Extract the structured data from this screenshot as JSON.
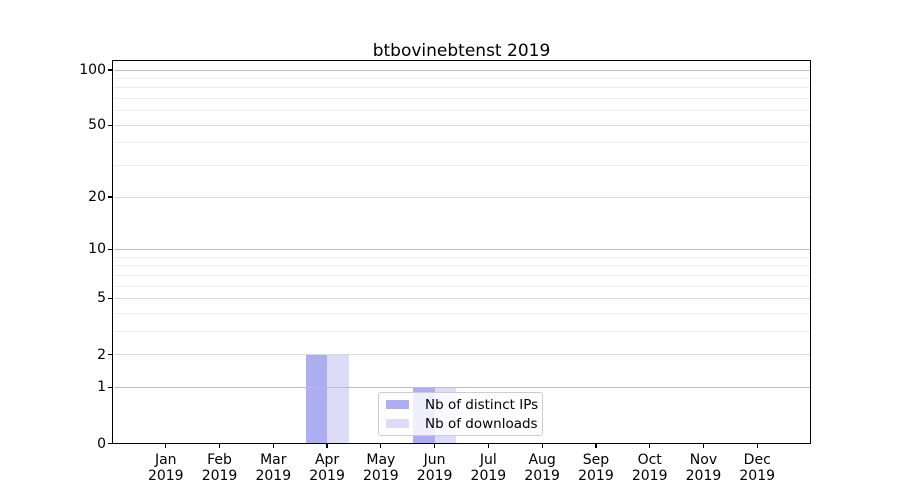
{
  "chart_data": {
    "type": "bar",
    "title": "btbovinebtenst 2019",
    "x_ticks": [
      {
        "month": "Jan",
        "year": "2019"
      },
      {
        "month": "Feb",
        "year": "2019"
      },
      {
        "month": "Mar",
        "year": "2019"
      },
      {
        "month": "Apr",
        "year": "2019"
      },
      {
        "month": "May",
        "year": "2019"
      },
      {
        "month": "Jun",
        "year": "2019"
      },
      {
        "month": "Jul",
        "year": "2019"
      },
      {
        "month": "Aug",
        "year": "2019"
      },
      {
        "month": "Sep",
        "year": "2019"
      },
      {
        "month": "Oct",
        "year": "2019"
      },
      {
        "month": "Nov",
        "year": "2019"
      },
      {
        "month": "Dec",
        "year": "2019"
      }
    ],
    "series": [
      {
        "name": "Nb of distinct IPs",
        "color": "#adadf1",
        "values": [
          0,
          0,
          0,
          2,
          0,
          1,
          0,
          0,
          0,
          0,
          0,
          0
        ]
      },
      {
        "name": "Nb of downloads",
        "color": "#dcdcf9",
        "values": [
          0,
          0,
          0,
          2,
          0,
          1,
          0,
          0,
          0,
          0,
          0,
          0
        ]
      }
    ],
    "y_scale": "log1p",
    "y_max": 112.6,
    "y_ticks": [
      0,
      1,
      2,
      5,
      10,
      20,
      50,
      100
    ],
    "y_minor_ticks": [
      3,
      4,
      6,
      7,
      8,
      9,
      30,
      40,
      60,
      70,
      80,
      90
    ],
    "xlabel": "",
    "ylabel": "",
    "grid": "horizontal",
    "legend_position": "lower-center",
    "colors": {
      "background": "#ffffff",
      "axis": "#000000",
      "grid_decade": "#bdbdbd",
      "grid_major": "#d9d9d9",
      "grid_minor": "#ededed"
    }
  }
}
